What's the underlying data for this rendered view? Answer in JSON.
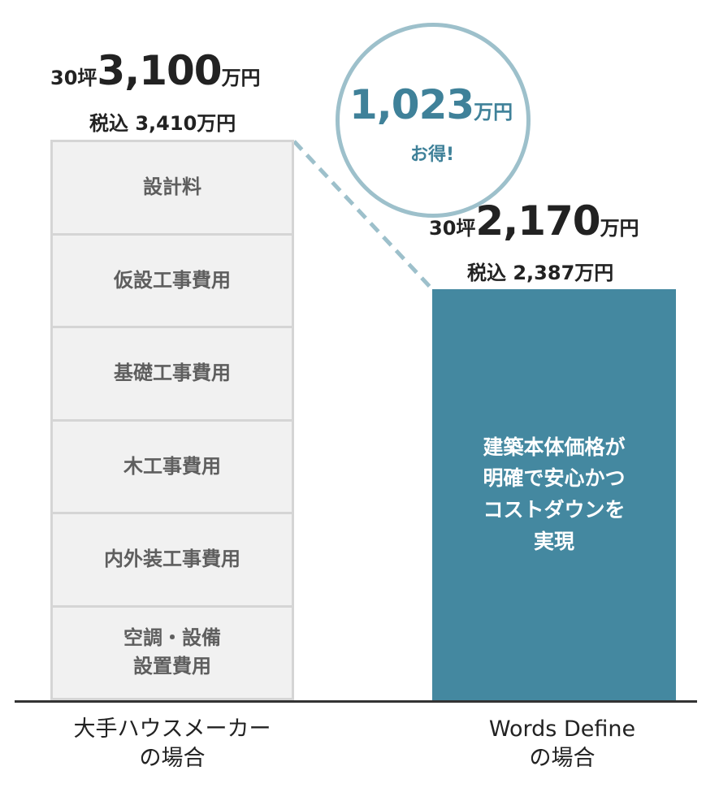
{
  "chart_data": {
    "type": "bar",
    "categories": [
      "大手ハウスメーカー\nの場合",
      "Words Define\nの場合"
    ],
    "values": [
      3100,
      2170
    ],
    "unit": "万円",
    "bars": [
      {
        "category": "大手ハウスメーカー\nの場合",
        "value": 3100,
        "label_prefix": "30坪",
        "label_value": "3,100",
        "label_unit": "万円",
        "tax_label": "税込 3,410万円",
        "segments": [
          "設計料",
          "仮設工事費用",
          "基礎工事費用",
          "木工事費用",
          "内外装工事費用",
          "空調・設備\n設置費用"
        ]
      },
      {
        "category": "Words Define\nの場合",
        "value": 2170,
        "label_prefix": "30坪",
        "label_value": "2,170",
        "label_unit": "万円",
        "tax_label": "税込 2,387万円",
        "inner_text": "建築本体価格が\n明確で安心かつ\nコストダウンを\n実現"
      }
    ],
    "annotation": {
      "value": "1,023",
      "unit": "万円",
      "text": "お得!"
    },
    "colors": {
      "left_bar": "#f1f1f1",
      "left_border": "#d5d5d5",
      "right_bar": "#4488a0",
      "circle_border": "#9dc0cb",
      "accent_text": "#3f8199"
    }
  }
}
